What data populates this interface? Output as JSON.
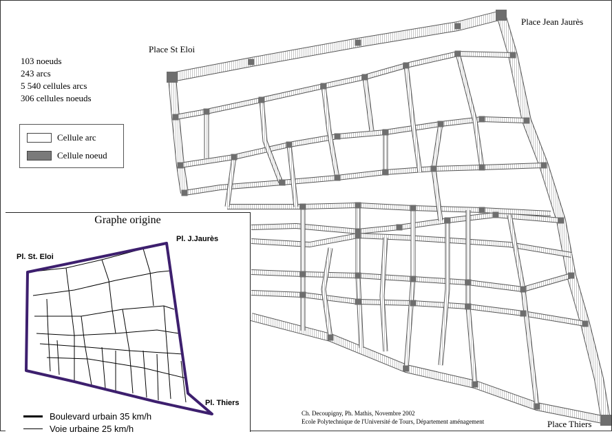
{
  "places": {
    "st_eloi": "Place St Eloi",
    "jean_jaures": "Place Jean Jaurès",
    "thiers": "Place Thiers"
  },
  "stats": {
    "nodes": "103 noeuds",
    "arcs": "243 arcs",
    "arc_cells": "5 540 cellules arcs",
    "node_cells": "306 cellules noeuds"
  },
  "legend": {
    "arc_cell": {
      "label": "Cellule arc",
      "color": "#ffffff"
    },
    "node_cell": {
      "label": "Cellule noeud",
      "color": "#7a7a7a"
    }
  },
  "inset": {
    "title": "Graphe origine",
    "labels": {
      "st_eloi": "Pl. St. Eloi",
      "jaures": "Pl. J.Jaurès",
      "thiers": "Pl. Thiers"
    },
    "legend": [
      {
        "label": "Boulevard urbain 35 km/h"
      },
      {
        "label": "Voie urbaine 25 km/h"
      }
    ],
    "boundary_color": "#3d1f6e"
  },
  "credits": {
    "line1": "Ch. Decoupigny, Ph. Mathis, Novembre 2002",
    "line2": "Ecole Polytechnique de l'Université de Tours, Département aménagement"
  }
}
